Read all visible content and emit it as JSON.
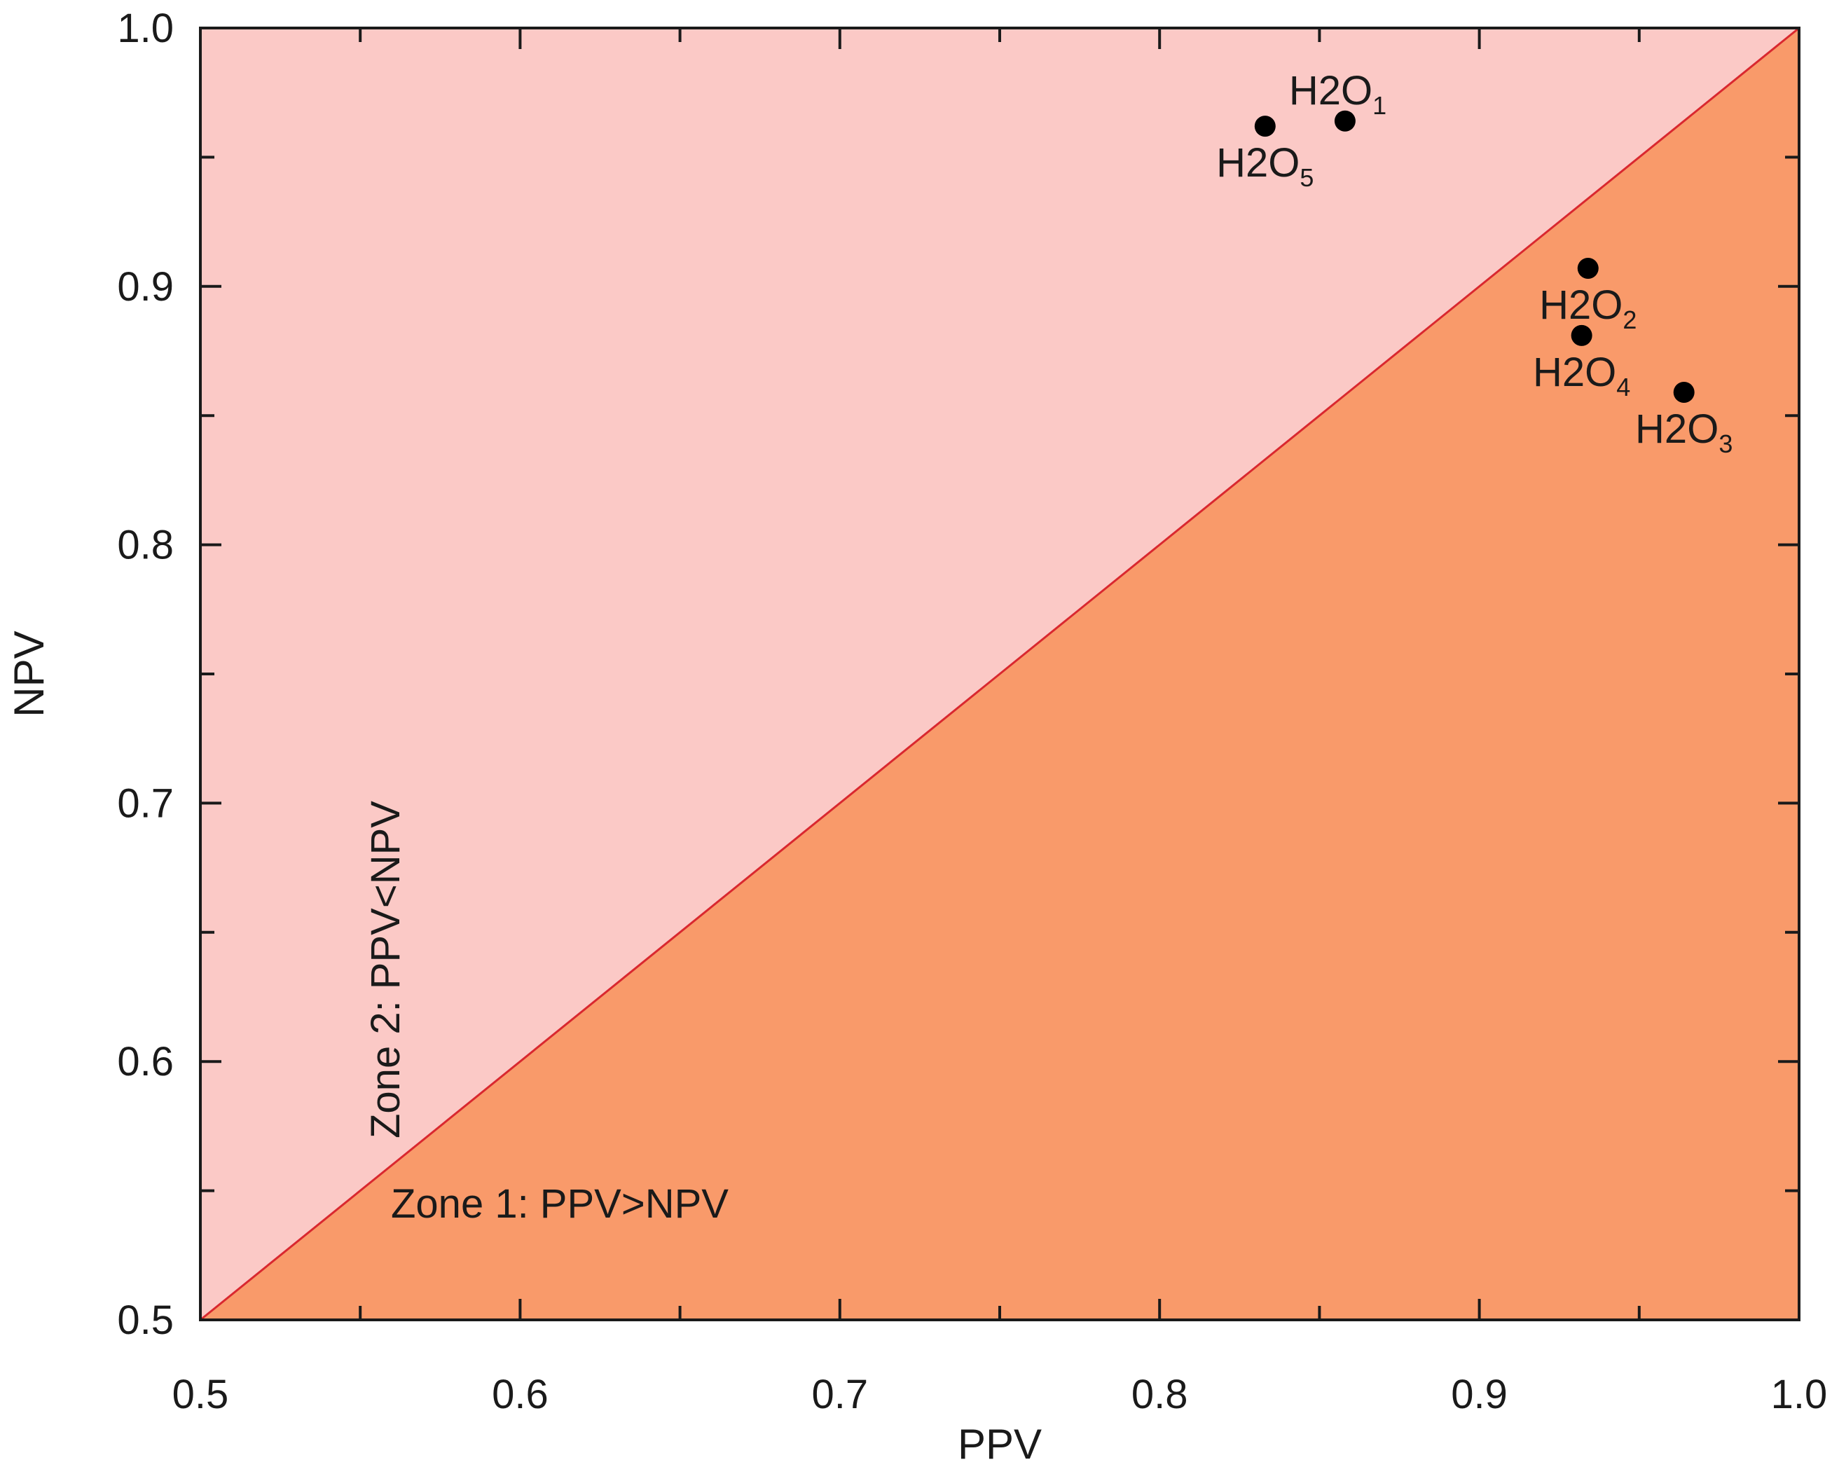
{
  "chart_data": {
    "type": "scatter",
    "title": "",
    "xlabel": "PPV",
    "ylabel": "NPV",
    "xlim": [
      0.5,
      1.0
    ],
    "ylim": [
      0.5,
      1.0
    ],
    "grid": false,
    "x_ticks": [
      {
        "value": 0.5,
        "label": "0.5"
      },
      {
        "value": 0.6,
        "label": "0.6"
      },
      {
        "value": 0.7,
        "label": "0.7"
      },
      {
        "value": 0.8,
        "label": "0.8"
      },
      {
        "value": 0.9,
        "label": "0.9"
      },
      {
        "value": 1.0,
        "label": "1.0"
      }
    ],
    "y_ticks": [
      {
        "value": 0.5,
        "label": "0.5"
      },
      {
        "value": 0.6,
        "label": "0.6"
      },
      {
        "value": 0.7,
        "label": "0.7"
      },
      {
        "value": 0.8,
        "label": "0.8"
      },
      {
        "value": 0.9,
        "label": "0.9"
      },
      {
        "value": 1.0,
        "label": "1.0"
      }
    ],
    "minor_step": 0.05,
    "diagonal": {
      "from": [
        0.5,
        0.5
      ],
      "to": [
        1.0,
        1.0
      ],
      "color": "#d9282f"
    },
    "zones": [
      {
        "name": "Zone 1: PPV>NPV",
        "region": "below-diagonal",
        "color": "#f99a6a"
      },
      {
        "name": "Zone 2: PPV<NPV",
        "region": "above-diagonal",
        "color": "#fbc9c6"
      }
    ],
    "series": [
      {
        "name": "H2O",
        "marker_color": "#000000",
        "points": [
          {
            "base": "H2O",
            "sub": "1",
            "x": 0.858,
            "y": 0.964,
            "label_side": "above-right"
          },
          {
            "base": "H2O",
            "sub": "5",
            "x": 0.833,
            "y": 0.962,
            "label_side": "below"
          },
          {
            "base": "H2O",
            "sub": "2",
            "x": 0.934,
            "y": 0.907,
            "label_side": "below"
          },
          {
            "base": "H2O",
            "sub": "4",
            "x": 0.932,
            "y": 0.881,
            "label_side": "below"
          },
          {
            "base": "H2O",
            "sub": "3",
            "x": 0.964,
            "y": 0.859,
            "label_side": "below"
          }
        ]
      }
    ]
  },
  "colors": {
    "axis": "#1a1a1a",
    "zone_below": "#f99a6a",
    "zone_above": "#fbc9c6",
    "diagonal": "#d9282f"
  }
}
